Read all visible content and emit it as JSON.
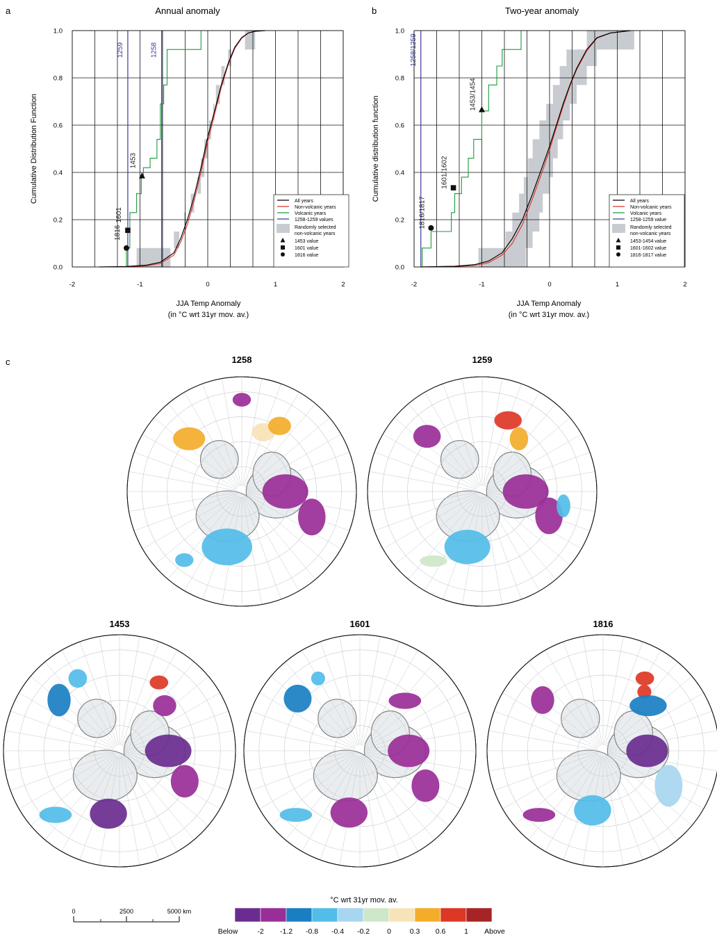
{
  "panels": {
    "a": "a",
    "b": "b",
    "c": "c"
  },
  "colors": {
    "all_years": "#000000",
    "non_volcanic": "#e0302a",
    "volcanic": "#1a9a3c",
    "volcanic_values": "#3b3b9a",
    "random_band": "#c8ccd0",
    "map_land": "#e9edf0",
    "coast": "#808080"
  },
  "chart_data": [
    {
      "type": "line",
      "title": "Annual anomaly",
      "xlabel": "JJA Temp Anomaly",
      "xlabel2": "(in °C wrt 31yr mov. av.)",
      "ylabel": "Cumulative Distribution Function",
      "xlim": [
        -2,
        2
      ],
      "ylim": [
        0,
        1
      ],
      "xticks": [
        "-2",
        "-1",
        "0",
        "1",
        "2"
      ],
      "yticks": [
        "0.0",
        "0.2",
        "0.4",
        "0.6",
        "0.8",
        "1.0"
      ],
      "grid": true,
      "legend_position": "bottom-right",
      "legend": [
        "All years",
        "Non-volcanic years",
        "Volcanic years",
        "1258-1259 values",
        "Randomly selected",
        "non-volcanic years",
        "1453 value",
        "1601 value",
        "1816 value"
      ],
      "band_lower": [
        [
          -1.05,
          0
        ],
        [
          -1.05,
          0.08
        ],
        [
          -0.5,
          0.08
        ],
        [
          -0.5,
          0.15
        ],
        [
          -0.35,
          0.15
        ],
        [
          -0.35,
          0.23
        ],
        [
          -0.25,
          0.23
        ],
        [
          -0.25,
          0.31
        ],
        [
          -0.15,
          0.31
        ],
        [
          -0.15,
          0.38
        ],
        [
          -0.1,
          0.38
        ],
        [
          -0.1,
          0.46
        ],
        [
          -0.05,
          0.46
        ],
        [
          -0.05,
          0.54
        ],
        [
          0.02,
          0.54
        ],
        [
          0.02,
          0.62
        ],
        [
          0.08,
          0.62
        ],
        [
          0.08,
          0.69
        ],
        [
          0.12,
          0.69
        ],
        [
          0.12,
          0.77
        ],
        [
          0.2,
          0.77
        ],
        [
          0.2,
          0.85
        ],
        [
          0.3,
          0.85
        ],
        [
          0.3,
          0.92
        ],
        [
          0.55,
          0.92
        ],
        [
          0.55,
          1.0
        ]
      ],
      "band_upper": [
        [
          -0.55,
          0
        ],
        [
          -0.55,
          0.08
        ],
        [
          -0.42,
          0.08
        ],
        [
          -0.42,
          0.15
        ],
        [
          -0.32,
          0.15
        ],
        [
          -0.32,
          0.23
        ],
        [
          -0.2,
          0.23
        ],
        [
          -0.2,
          0.31
        ],
        [
          -0.1,
          0.31
        ],
        [
          -0.1,
          0.38
        ],
        [
          -0.05,
          0.38
        ],
        [
          -0.05,
          0.46
        ],
        [
          0,
          0.46
        ],
        [
          0,
          0.54
        ],
        [
          0.05,
          0.54
        ],
        [
          0.05,
          0.62
        ],
        [
          0.1,
          0.62
        ],
        [
          0.1,
          0.69
        ],
        [
          0.18,
          0.69
        ],
        [
          0.18,
          0.77
        ],
        [
          0.25,
          0.77
        ],
        [
          0.25,
          0.85
        ],
        [
          0.35,
          0.85
        ],
        [
          0.35,
          0.92
        ],
        [
          0.7,
          0.92
        ],
        [
          0.7,
          1.0
        ]
      ],
      "series": [
        {
          "name": "All years",
          "key": "all",
          "x": [
            -1.6,
            -1.2,
            -0.9,
            -0.7,
            -0.5,
            -0.4,
            -0.3,
            -0.2,
            -0.1,
            0,
            0.1,
            0.2,
            0.3,
            0.4,
            0.5,
            0.6,
            0.7,
            0.85
          ],
          "y": [
            0,
            0.002,
            0.008,
            0.02,
            0.06,
            0.12,
            0.2,
            0.3,
            0.42,
            0.55,
            0.66,
            0.77,
            0.86,
            0.93,
            0.97,
            0.99,
            0.997,
            1.0
          ]
        },
        {
          "name": "Non-volcanic years",
          "key": "nonvolc",
          "x": [
            -1.6,
            -1.2,
            -0.9,
            -0.7,
            -0.5,
            -0.4,
            -0.3,
            -0.2,
            -0.1,
            0,
            0.1,
            0.2,
            0.3,
            0.4,
            0.5,
            0.6,
            0.7,
            0.85
          ],
          "y": [
            0,
            0.001,
            0.005,
            0.015,
            0.05,
            0.105,
            0.18,
            0.28,
            0.4,
            0.53,
            0.645,
            0.76,
            0.855,
            0.925,
            0.968,
            0.99,
            0.997,
            1.0
          ]
        },
        {
          "name": "Volcanic years",
          "key": "volc",
          "step": true,
          "x": [
            -1.2,
            -1.2,
            -1.15,
            -1.15,
            -1.05,
            -1.05,
            -0.98,
            -0.98,
            -0.95,
            -0.95,
            -0.85,
            -0.85,
            -0.75,
            -0.75,
            -0.7,
            -0.7,
            -0.65,
            -0.65,
            -0.6,
            -0.6,
            -0.1,
            -0.1
          ],
          "y": [
            0,
            0.08,
            0.08,
            0.23,
            0.23,
            0.31,
            0.31,
            0.38,
            0.38,
            0.42,
            0.42,
            0.46,
            0.46,
            0.54,
            0.54,
            0.69,
            0.69,
            0.77,
            0.77,
            0.92,
            0.92,
            1.0
          ]
        }
      ],
      "value_lines": [
        {
          "label": "1259",
          "x": -1.18
        },
        {
          "label": "1258",
          "x": -0.68
        }
      ],
      "markers": [
        {
          "label": "1453",
          "shape": "triangle",
          "x": -0.97,
          "y": 0.385
        },
        {
          "label": "1601",
          "shape": "square",
          "x": -1.18,
          "y": 0.155
        },
        {
          "label": "1816",
          "shape": "circle",
          "x": -1.2,
          "y": 0.08
        }
      ]
    },
    {
      "type": "line",
      "title": "Two-year anomaly",
      "xlabel": "JJA Temp Anomaly",
      "xlabel2": "(in °C wrt 31yr mov. av.)",
      "ylabel": "Cumulative distribution function",
      "xlim": [
        -2,
        2
      ],
      "ylim": [
        0,
        1
      ],
      "xticks": [
        "-2",
        "-1",
        "0",
        "1",
        "2"
      ],
      "yticks": [
        "0.0",
        "0.2",
        "0.4",
        "0.6",
        "0.8",
        "1.0"
      ],
      "grid": true,
      "legend_position": "bottom-right",
      "legend": [
        "All years",
        "Non-volcanic years",
        "Volcanic years",
        "1258-1259 value",
        "Randomly selected",
        "non-volcanic years",
        "1453-1454 value",
        "1601-1602 value",
        "1816-1817 value"
      ],
      "band_lower": [
        [
          -1.05,
          0
        ],
        [
          -1.05,
          0.08
        ],
        [
          -0.65,
          0.08
        ],
        [
          -0.65,
          0.15
        ],
        [
          -0.55,
          0.15
        ],
        [
          -0.55,
          0.23
        ],
        [
          -0.45,
          0.23
        ],
        [
          -0.45,
          0.31
        ],
        [
          -0.38,
          0.31
        ],
        [
          -0.38,
          0.38
        ],
        [
          -0.32,
          0.38
        ],
        [
          -0.32,
          0.46
        ],
        [
          -0.25,
          0.46
        ],
        [
          -0.25,
          0.54
        ],
        [
          -0.15,
          0.54
        ],
        [
          -0.15,
          0.62
        ],
        [
          -0.05,
          0.62
        ],
        [
          -0.05,
          0.69
        ],
        [
          0.05,
          0.69
        ],
        [
          0.05,
          0.77
        ],
        [
          0.15,
          0.77
        ],
        [
          0.15,
          0.85
        ],
        [
          0.25,
          0.85
        ],
        [
          0.25,
          0.92
        ],
        [
          0.55,
          0.92
        ],
        [
          0.55,
          1.0
        ]
      ],
      "band_upper": [
        [
          -0.35,
          0
        ],
        [
          -0.35,
          0.08
        ],
        [
          -0.25,
          0.08
        ],
        [
          -0.25,
          0.15
        ],
        [
          -0.15,
          0.15
        ],
        [
          -0.15,
          0.23
        ],
        [
          -0.1,
          0.23
        ],
        [
          -0.1,
          0.31
        ],
        [
          0,
          0.31
        ],
        [
          0,
          0.38
        ],
        [
          0.05,
          0.38
        ],
        [
          0.05,
          0.46
        ],
        [
          0.12,
          0.46
        ],
        [
          0.12,
          0.54
        ],
        [
          0.2,
          0.54
        ],
        [
          0.2,
          0.62
        ],
        [
          0.3,
          0.62
        ],
        [
          0.3,
          0.69
        ],
        [
          0.4,
          0.69
        ],
        [
          0.4,
          0.77
        ],
        [
          0.55,
          0.77
        ],
        [
          0.55,
          0.85
        ],
        [
          0.7,
          0.85
        ],
        [
          0.7,
          0.92
        ],
        [
          1.25,
          0.92
        ],
        [
          1.25,
          1.0
        ]
      ],
      "series": [
        {
          "name": "All years",
          "key": "all",
          "x": [
            -1.9,
            -1.4,
            -1.1,
            -0.9,
            -0.7,
            -0.55,
            -0.4,
            -0.25,
            -0.1,
            0,
            0.1,
            0.2,
            0.3,
            0.4,
            0.55,
            0.7,
            0.9,
            1.2
          ],
          "y": [
            0,
            0.003,
            0.01,
            0.025,
            0.06,
            0.12,
            0.2,
            0.31,
            0.43,
            0.51,
            0.6,
            0.69,
            0.77,
            0.84,
            0.92,
            0.97,
            0.99,
            1.0
          ]
        },
        {
          "name": "Non-volcanic years",
          "key": "nonvolc",
          "x": [
            -1.9,
            -1.4,
            -1.1,
            -0.9,
            -0.7,
            -0.55,
            -0.4,
            -0.25,
            -0.1,
            0,
            0.1,
            0.2,
            0.3,
            0.4,
            0.55,
            0.7,
            0.9,
            1.2
          ],
          "y": [
            0,
            0.002,
            0.006,
            0.018,
            0.05,
            0.1,
            0.18,
            0.29,
            0.41,
            0.495,
            0.59,
            0.68,
            0.765,
            0.835,
            0.915,
            0.968,
            0.99,
            1.0
          ]
        },
        {
          "name": "Volcanic years",
          "key": "volc",
          "step": true,
          "x": [
            -1.88,
            -1.88,
            -1.75,
            -1.75,
            -1.45,
            -1.45,
            -1.4,
            -1.4,
            -1.3,
            -1.3,
            -1.2,
            -1.2,
            -1.12,
            -1.12,
            -1.0,
            -1.0,
            -0.9,
            -0.9,
            -0.78,
            -0.78,
            -0.7,
            -0.7,
            -0.42,
            -0.42
          ],
          "y": [
            0,
            0.08,
            0.08,
            0.15,
            0.15,
            0.23,
            0.23,
            0.31,
            0.31,
            0.38,
            0.38,
            0.46,
            0.46,
            0.54,
            0.54,
            0.66,
            0.66,
            0.77,
            0.77,
            0.85,
            0.85,
            0.92,
            0.92,
            1.0
          ]
        }
      ],
      "value_lines": [
        {
          "label": "1258/1259",
          "x": -1.9
        }
      ],
      "markers": [
        {
          "label": "1453/1454",
          "shape": "triangle",
          "x": -1.0,
          "y": 0.665
        },
        {
          "label": "1601/1602",
          "shape": "square",
          "x": -1.42,
          "y": 0.335
        },
        {
          "label": "1816/1817",
          "shape": "circle",
          "x": -1.75,
          "y": 0.165
        }
      ]
    }
  ],
  "maps": [
    {
      "year": "1258"
    },
    {
      "year": "1259"
    },
    {
      "year": "1453"
    },
    {
      "year": "1601"
    },
    {
      "year": "1816"
    }
  ],
  "colorbar": {
    "title": "°C wrt 31yr mov. av.",
    "labels": [
      "Below",
      "-2",
      "-1.2",
      "-0.8",
      "-0.4",
      "-0.2",
      "0",
      "0.3",
      "0.6",
      "1",
      "Above"
    ],
    "colors": [
      "#6a2d8f",
      "#9a2e97",
      "#1a7fc2",
      "#52bde8",
      "#a8d6f0",
      "#cfe7c9",
      "#f7e3b8",
      "#f3ad2a",
      "#dd3726",
      "#a72426"
    ]
  },
  "scalebar": {
    "labels": [
      "0",
      "2500",
      "5000 km"
    ]
  }
}
